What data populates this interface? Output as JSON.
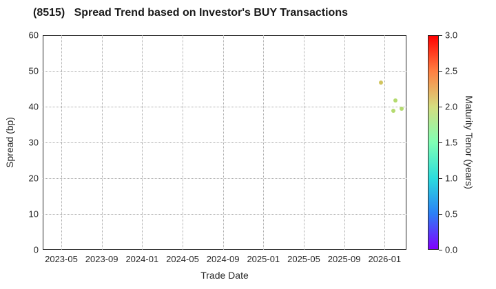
{
  "chart_data": {
    "type": "scatter",
    "title": "(8515)   Spread Trend based on Investor's BUY Transactions",
    "xlabel": "Trade Date",
    "ylabel": "Spread (bp)",
    "grid": true,
    "x_axis": {
      "range_decimal_years": [
        2023.18,
        2026.18
      ],
      "ticks": [
        {
          "label": "2023-05",
          "value": 2023.3333
        },
        {
          "label": "2023-09",
          "value": 2023.6667
        },
        {
          "label": "2024-01",
          "value": 2024.0
        },
        {
          "label": "2024-05",
          "value": 2024.3333
        },
        {
          "label": "2024-09",
          "value": 2024.6667
        },
        {
          "label": "2025-01",
          "value": 2025.0
        },
        {
          "label": "2025-05",
          "value": 2025.3333
        },
        {
          "label": "2025-09",
          "value": 2025.6667
        },
        {
          "label": "2026-01",
          "value": 2026.0
        }
      ]
    },
    "y_axis": {
      "range": [
        0,
        60
      ],
      "ticks": [
        0,
        10,
        20,
        30,
        40,
        50,
        60
      ]
    },
    "points": [
      {
        "trade_date": "2025-12",
        "x_decimal_year": 2025.97,
        "spread_bp": 46.8,
        "maturity_years_est": 2.0,
        "color": "#cfc155"
      },
      {
        "trade_date": "2026-02",
        "x_decimal_year": 2026.09,
        "spread_bp": 41.7,
        "maturity_years_est": 1.8,
        "color": "#b0d867"
      },
      {
        "trade_date": "2026-01",
        "x_decimal_year": 2026.07,
        "spread_bp": 38.8,
        "maturity_years_est": 1.8,
        "color": "#b0d867"
      },
      {
        "trade_date": "2026-02",
        "x_decimal_year": 2026.14,
        "spread_bp": 39.4,
        "maturity_years_est": 1.8,
        "color": "#b0d867"
      }
    ],
    "colorbar": {
      "label": "Maturity Tenor (years)",
      "range": [
        0.0,
        3.0
      ],
      "tick_labels": [
        "0.0",
        "0.5",
        "1.0",
        "1.5",
        "2.0",
        "2.5",
        "3.0"
      ],
      "tick_values": [
        0.0,
        0.5,
        1.0,
        1.5,
        2.0,
        2.5,
        3.0
      ],
      "gradient_stops_bottom_to_top": [
        "#8000ff",
        "#2b80f6",
        "#2bdddd",
        "#80ffb4",
        "#d5dd80",
        "#ff8042",
        "#ff0000"
      ],
      "colormap": "rainbow"
    },
    "style": {
      "text_color": "#262626",
      "spine_color": "#262626",
      "grid_color": "#a9a9a9",
      "background": "#ffffff"
    }
  }
}
